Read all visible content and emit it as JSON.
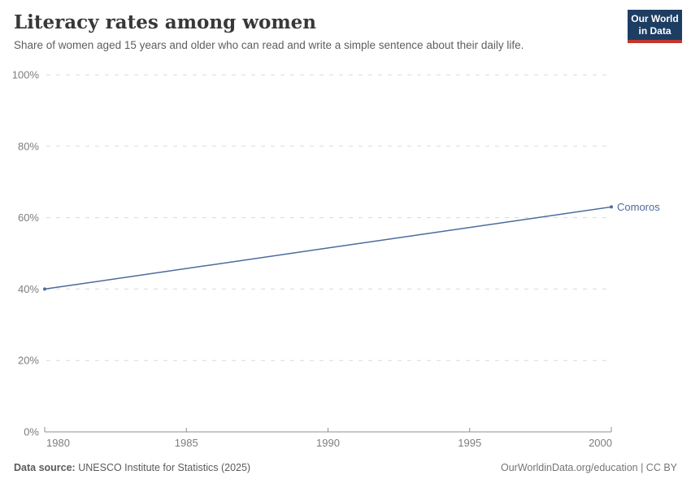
{
  "header": {
    "title": "Literacy rates among women",
    "subtitle": "Share of women aged 15 years and older who can read and write a simple sentence about their daily life.",
    "logo": {
      "line1": "Our World",
      "line2": "in Data"
    }
  },
  "chart_data": {
    "type": "line",
    "title": "Literacy rates among women",
    "xlabel": "",
    "ylabel": "",
    "xlim": [
      1980,
      2000
    ],
    "ylim": [
      0,
      100
    ],
    "x_ticks": [
      1980,
      1985,
      1990,
      1995,
      2000
    ],
    "y_ticks": [
      0,
      20,
      40,
      60,
      80,
      100
    ],
    "y_tick_suffix": "%",
    "grid": "horizontal-dashed",
    "legend_position": "line-end-label",
    "series": [
      {
        "name": "Comoros",
        "color": "#4c6a9c",
        "points": [
          [
            1980,
            40
          ],
          [
            2000,
            63
          ]
        ]
      }
    ]
  },
  "footer": {
    "source_label": "Data source:",
    "source_text": "UNESCO Institute for Statistics (2025)",
    "credit": "OurWorldinData.org/education | CC BY"
  },
  "colors": {
    "accent_blue": "#4c6a9c",
    "logo_bg": "#1d3d63",
    "logo_stripe": "#c0372b",
    "grid": "#dadada",
    "axis": "#8f8f8f",
    "tick_text": "#7d7d7d",
    "title_text": "#383838",
    "subtitle_text": "#5e5e5e"
  }
}
